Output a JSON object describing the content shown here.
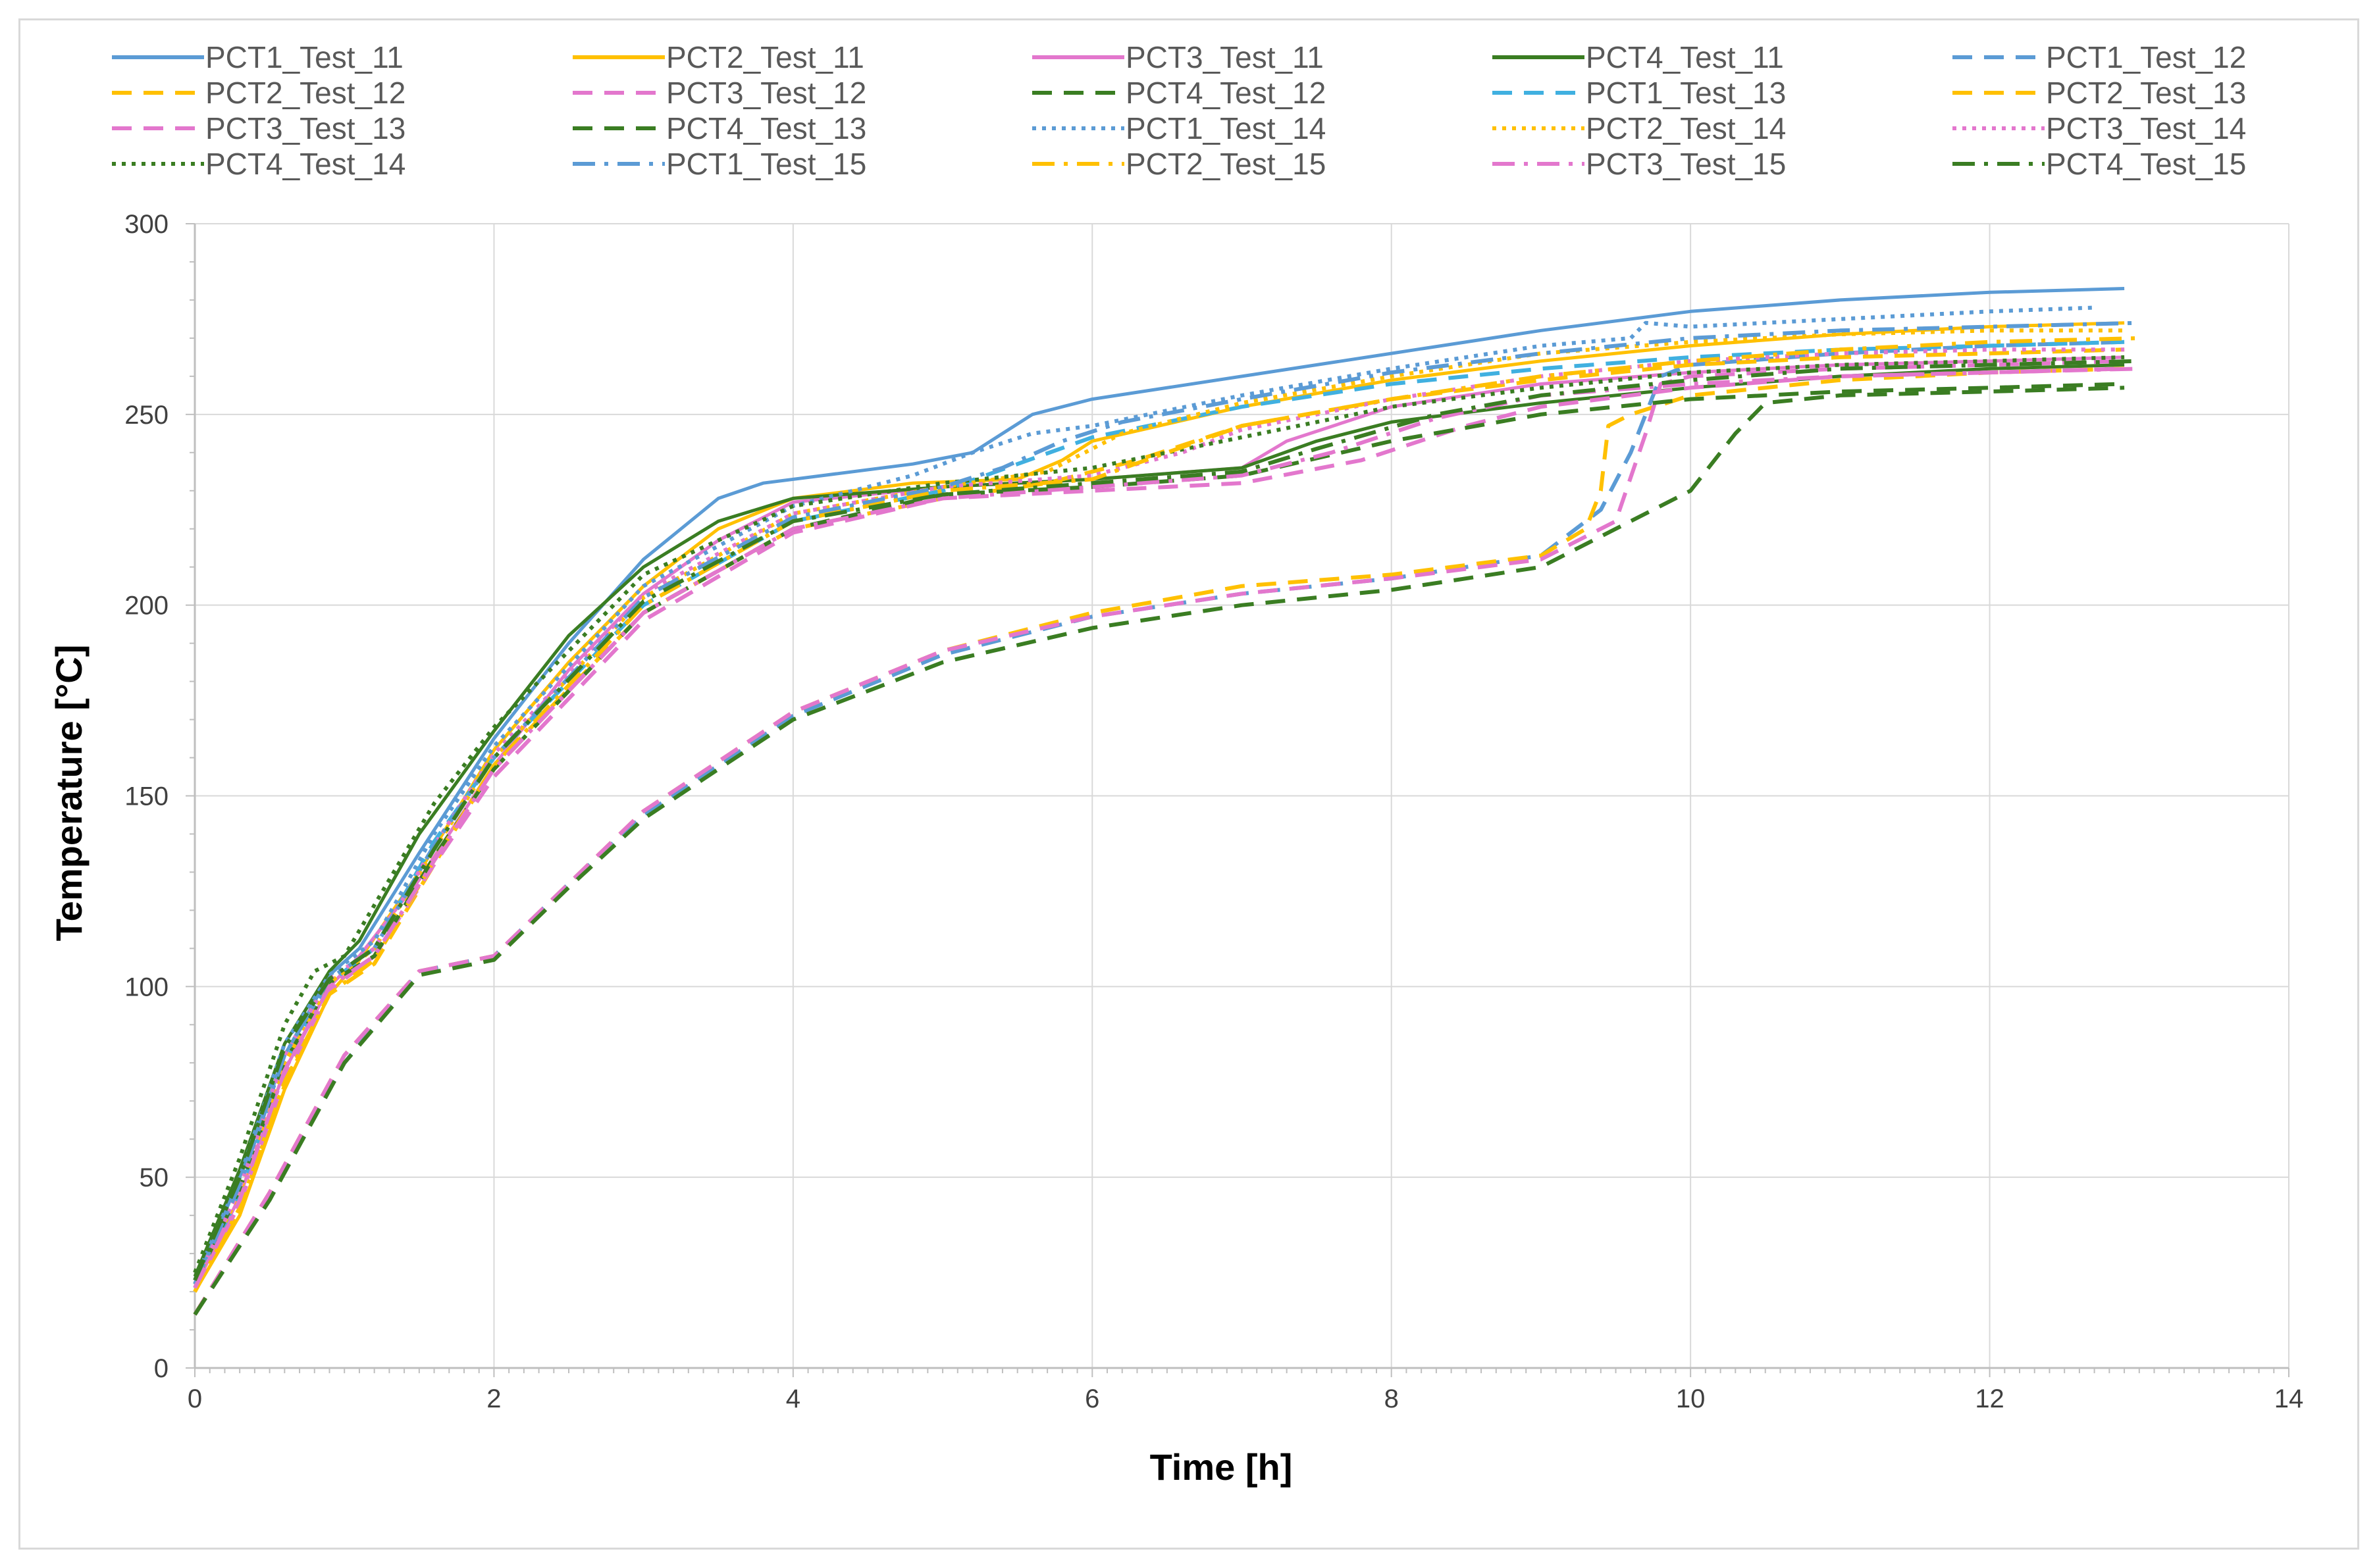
{
  "chart_data": {
    "type": "line",
    "title": "",
    "xlabel": "Time [h]",
    "ylabel": "Temperature [°C]",
    "xlim": [
      0,
      14
    ],
    "ylim": [
      0,
      300
    ],
    "xticks": [
      0,
      2,
      4,
      6,
      8,
      10,
      12,
      14
    ],
    "yticks": [
      0,
      50,
      100,
      150,
      200,
      250,
      300
    ],
    "grid": true,
    "legend_position": "top",
    "series": [
      {
        "name": "PCT1_Test_11",
        "color": "#5b9bd5",
        "style": "solid",
        "x": [
          0,
          0.3,
          0.6,
          0.9,
          1.1,
          1.5,
          2,
          2.5,
          3,
          3.5,
          3.8,
          4.2,
          4.8,
          5.2,
          5.6,
          6,
          7,
          8,
          9,
          10,
          11,
          12,
          12.9
        ],
        "y": [
          22,
          50,
          82,
          103,
          110,
          135,
          165,
          190,
          212,
          228,
          232,
          234,
          237,
          240,
          250,
          254,
          260,
          266,
          272,
          277,
          280,
          282,
          283
        ]
      },
      {
        "name": "PCT2_Test_11",
        "color": "#ffc000",
        "style": "solid",
        "x": [
          0,
          0.3,
          0.6,
          0.9,
          1.1,
          1.5,
          2,
          2.5,
          3,
          3.5,
          4,
          4.8,
          5.5,
          5.8,
          6,
          7,
          8,
          9,
          10,
          11,
          12,
          12.9
        ],
        "y": [
          20,
          40,
          73,
          98,
          107,
          130,
          162,
          185,
          205,
          220,
          228,
          232,
          233,
          238,
          243,
          252,
          259,
          264,
          268,
          271,
          273,
          274
        ]
      },
      {
        "name": "PCT3_Test_11",
        "color": "#e377cd",
        "style": "solid",
        "x": [
          0,
          0.3,
          0.6,
          0.9,
          1.1,
          1.5,
          2,
          2.5,
          3,
          3.5,
          4,
          5,
          6,
          7,
          7.3,
          8,
          9,
          10,
          11,
          12,
          12.9
        ],
        "y": [
          21,
          45,
          78,
          100,
          108,
          128,
          158,
          183,
          203,
          217,
          227,
          231,
          233,
          236,
          243,
          252,
          258,
          261,
          263,
          264,
          265
        ]
      },
      {
        "name": "PCT4_Test_11",
        "color": "#3a7d22",
        "style": "solid",
        "x": [
          0,
          0.3,
          0.6,
          0.9,
          1.1,
          1.5,
          2,
          2.5,
          3,
          3.5,
          4,
          5,
          6,
          7,
          7.5,
          8,
          9,
          10,
          11,
          12,
          12.9
        ],
        "y": [
          24,
          52,
          85,
          104,
          112,
          140,
          167,
          192,
          210,
          222,
          228,
          231,
          233,
          236,
          243,
          248,
          253,
          257,
          260,
          262,
          263
        ]
      },
      {
        "name": "PCT1_Test_12",
        "color": "#5b9bd5",
        "style": "dashed",
        "x": [
          0,
          0.5,
          1,
          1.5,
          2,
          2.5,
          3,
          4,
          5,
          6,
          7,
          8,
          9,
          9.4,
          9.6,
          9.8,
          10,
          11,
          12,
          12.9
        ],
        "y": [
          14,
          45,
          80,
          104,
          108,
          127,
          145,
          171,
          187,
          197,
          203,
          207,
          213,
          225,
          240,
          260,
          263,
          266,
          268,
          269
        ]
      },
      {
        "name": "PCT2_Test_12",
        "color": "#ffc000",
        "style": "dashed",
        "x": [
          0,
          0.5,
          1,
          1.5,
          2,
          2.5,
          3,
          4,
          5,
          6,
          7,
          8,
          9,
          9.3,
          9.4,
          9.45,
          9.6,
          10,
          11,
          12,
          12.9
        ],
        "y": [
          14,
          46,
          82,
          104,
          108,
          127,
          146,
          172,
          188,
          198,
          205,
          208,
          213,
          220,
          230,
          247,
          250,
          255,
          259,
          261,
          262
        ]
      },
      {
        "name": "PCT3_Test_12",
        "color": "#e377cd",
        "style": "dashed",
        "x": [
          0,
          0.5,
          1,
          1.5,
          2,
          2.5,
          3,
          4,
          5,
          6,
          7,
          8,
          9,
          9.5,
          9.7,
          9.8,
          10,
          11,
          12,
          12.9
        ],
        "y": [
          14,
          46,
          82,
          104,
          108,
          127,
          146,
          172,
          188,
          197,
          203,
          207,
          212,
          222,
          245,
          258,
          260,
          262,
          263,
          264
        ]
      },
      {
        "name": "PCT4_Test_12",
        "color": "#3a7d22",
        "style": "dashed",
        "x": [
          0,
          0.5,
          1,
          1.5,
          2,
          2.5,
          3,
          4,
          5,
          6,
          7,
          8,
          9,
          9.5,
          10,
          10.3,
          10.5,
          11,
          12,
          12.9
        ],
        "y": [
          14,
          44,
          80,
          103,
          107,
          126,
          144,
          170,
          185,
          194,
          200,
          204,
          210,
          220,
          230,
          245,
          253,
          255,
          256,
          257
        ]
      },
      {
        "name": "PCT1_Test_13",
        "color": "#40b0e0",
        "style": "dashed",
        "x": [
          0,
          0.3,
          0.6,
          0.9,
          1.2,
          1.6,
          2,
          3,
          4,
          5,
          5.5,
          6,
          7,
          8,
          9,
          10,
          11,
          12,
          12.9
        ],
        "y": [
          21,
          46,
          80,
          101,
          110,
          138,
          160,
          200,
          222,
          230,
          237,
          244,
          252,
          258,
          262,
          265,
          267,
          268,
          269
        ]
      },
      {
        "name": "PCT2_Test_13",
        "color": "#ffc000",
        "style": "dashed",
        "x": [
          0,
          0.3,
          0.6,
          0.9,
          1.2,
          1.6,
          2,
          3,
          4,
          5,
          5.7,
          6.3,
          7,
          8,
          9,
          10,
          11,
          12,
          12.9
        ],
        "y": [
          20,
          42,
          74,
          98,
          106,
          132,
          158,
          198,
          220,
          228,
          232,
          238,
          247,
          254,
          259,
          263,
          265,
          266,
          267
        ]
      },
      {
        "name": "PCT3_Test_13",
        "color": "#e377cd",
        "style": "dashed",
        "x": [
          0,
          0.3,
          0.6,
          0.9,
          1.2,
          1.6,
          2,
          3,
          4,
          5,
          6,
          7,
          7.8,
          8.5,
          9,
          10,
          11,
          12,
          12.9
        ],
        "y": [
          21,
          43,
          76,
          99,
          108,
          132,
          155,
          196,
          219,
          228,
          230,
          232,
          238,
          247,
          252,
          257,
          260,
          261,
          262
        ]
      },
      {
        "name": "PCT4_Test_13",
        "color": "#3a7d22",
        "style": "dashed",
        "x": [
          0,
          0.3,
          0.6,
          0.9,
          1.2,
          1.6,
          2,
          3,
          4,
          5,
          6,
          7,
          8,
          9,
          10,
          11,
          12,
          12.9
        ],
        "y": [
          22,
          47,
          80,
          101,
          108,
          134,
          157,
          198,
          220,
          229,
          231,
          234,
          243,
          250,
          254,
          256,
          257,
          258
        ]
      },
      {
        "name": "PCT1_Test_14",
        "color": "#5b9bd5",
        "style": "dotted",
        "x": [
          0,
          0.3,
          0.6,
          0.9,
          1.2,
          1.6,
          2,
          3,
          4,
          4.8,
          5.2,
          5.6,
          6,
          7,
          8,
          9,
          9.6,
          9.7,
          10,
          11,
          12,
          12.7
        ],
        "y": [
          23,
          50,
          85,
          103,
          112,
          140,
          163,
          205,
          226,
          234,
          240,
          245,
          247,
          255,
          262,
          268,
          270,
          274,
          273,
          275,
          277,
          278
        ]
      },
      {
        "name": "PCT2_Test_14",
        "color": "#ffc000",
        "style": "dotted",
        "x": [
          0,
          0.3,
          0.6,
          0.9,
          1.2,
          1.6,
          2,
          3,
          4,
          5,
          5.7,
          6.2,
          7,
          8,
          9,
          10,
          11,
          12,
          12.9
        ],
        "y": [
          22,
          46,
          80,
          101,
          110,
          136,
          160,
          202,
          224,
          231,
          235,
          245,
          253,
          260,
          266,
          269,
          271,
          272,
          272
        ]
      },
      {
        "name": "PCT3_Test_14",
        "color": "#e377cd",
        "style": "dotted",
        "x": [
          0,
          0.3,
          0.6,
          0.9,
          1.2,
          1.6,
          2,
          3,
          4,
          5,
          6,
          6.6,
          7,
          8,
          9,
          10,
          11,
          12,
          12.9
        ],
        "y": [
          22,
          47,
          82,
          102,
          110,
          137,
          161,
          203,
          224,
          231,
          234,
          240,
          246,
          254,
          260,
          264,
          266,
          267,
          267
        ]
      },
      {
        "name": "PCT4_Test_14",
        "color": "#3a7d22",
        "style": "dotted",
        "x": [
          0,
          0.3,
          0.6,
          0.8,
          1,
          1.3,
          1.6,
          2,
          3,
          4,
          5,
          6,
          7,
          8,
          9,
          10,
          11,
          12,
          12.9
        ],
        "y": [
          25,
          55,
          90,
          104,
          108,
          128,
          148,
          168,
          208,
          226,
          232,
          236,
          244,
          252,
          257,
          261,
          263,
          264,
          265
        ]
      },
      {
        "name": "PCT1_Test_15",
        "color": "#5b9bd5",
        "style": "dashdot",
        "x": [
          0,
          0.3,
          0.6,
          0.9,
          1.2,
          1.6,
          2,
          3,
          4,
          5,
          5.4,
          5.8,
          6.2,
          7,
          8,
          9,
          10,
          11,
          12,
          13
        ],
        "y": [
          22,
          48,
          82,
          102,
          110,
          137,
          160,
          202,
          223,
          231,
          236,
          243,
          248,
          254,
          261,
          266,
          270,
          272,
          273,
          274
        ]
      },
      {
        "name": "PCT2_Test_15",
        "color": "#ffc000",
        "style": "dashdot",
        "x": [
          0,
          0.3,
          0.6,
          0.9,
          1.2,
          1.6,
          2,
          3,
          4,
          5,
          6,
          6.5,
          7,
          8,
          9,
          10,
          11,
          12,
          13
        ],
        "y": [
          20,
          42,
          75,
          98,
          107,
          133,
          158,
          200,
          222,
          230,
          233,
          240,
          247,
          254,
          260,
          264,
          267,
          269,
          270
        ]
      },
      {
        "name": "PCT3_Test_15",
        "color": "#e377cd",
        "style": "dashdot",
        "x": [
          0,
          0.3,
          0.6,
          0.9,
          1.2,
          1.6,
          2,
          3,
          4,
          5,
          6,
          7,
          7.6,
          8.3,
          9,
          10,
          11,
          12,
          13
        ],
        "y": [
          21,
          44,
          78,
          100,
          108,
          133,
          157,
          198,
          220,
          228,
          231,
          234,
          240,
          249,
          255,
          258,
          260,
          261,
          262
        ]
      },
      {
        "name": "PCT4_Test_15",
        "color": "#3a7d22",
        "style": "dashdot",
        "x": [
          0,
          0.3,
          0.6,
          0.9,
          1.2,
          1.6,
          2,
          3,
          4,
          5,
          6,
          7,
          7.5,
          8.3,
          9,
          10,
          11,
          12,
          13
        ],
        "y": [
          23,
          50,
          84,
          102,
          110,
          136,
          160,
          201,
          222,
          229,
          232,
          235,
          241,
          250,
          255,
          259,
          262,
          263,
          264
        ]
      }
    ]
  }
}
